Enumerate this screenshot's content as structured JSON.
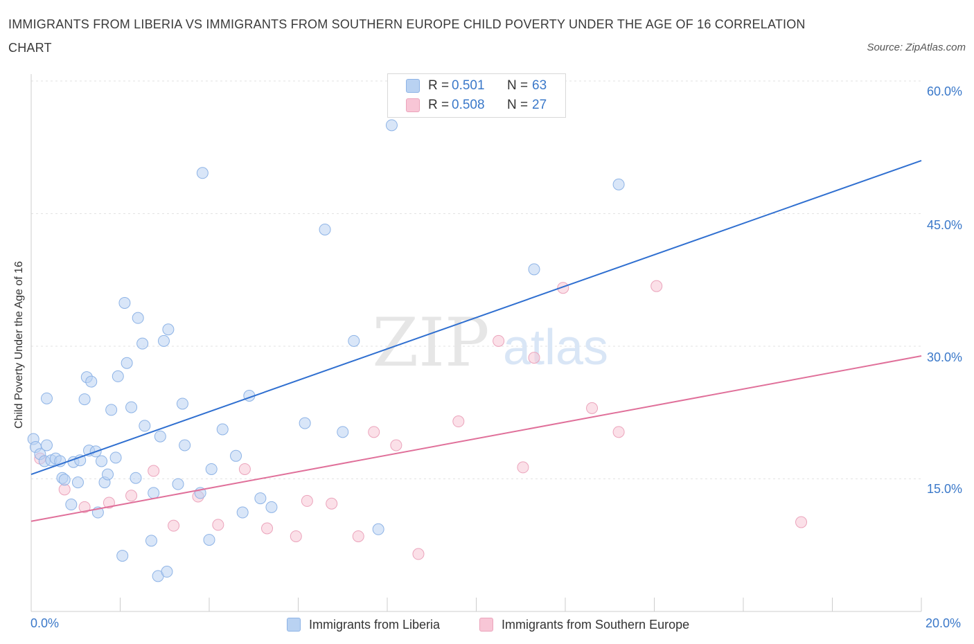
{
  "header": {
    "title": "IMMIGRANTS FROM LIBERIA VS IMMIGRANTS FROM SOUTHERN EUROPE CHILD POVERTY UNDER THE AGE OF 16 CORRELATION CHART",
    "source": "Source: ZipAtlas.com"
  },
  "watermark": {
    "zip": "ZIP",
    "atlas": "atlas"
  },
  "legend": {
    "r_label": "R =",
    "n_label": "N =",
    "series": [
      {
        "r": "0.501",
        "n": "63"
      },
      {
        "r": "0.508",
        "n": "27"
      }
    ]
  },
  "colors": {
    "blue_fill": "#b9d2f2",
    "blue_stroke": "#8db3e6",
    "blue_line": "#2f6fd0",
    "pink_fill": "#f8c6d6",
    "pink_stroke": "#eba3bb",
    "pink_line": "#e0709a",
    "accent_text": "#3a78c9"
  },
  "chart_data": {
    "type": "scatter",
    "title": "IMMIGRANTS FROM LIBERIA VS IMMIGRANTS FROM SOUTHERN EUROPE CHILD POVERTY UNDER THE AGE OF 16 CORRELATION CHART",
    "xlabel": "",
    "ylabel": "Child Poverty Under the Age of 16",
    "xlim": [
      0,
      20
    ],
    "ylim": [
      0,
      60
    ],
    "x_tick_labels": {
      "min": "0.0%",
      "max": "20.0%"
    },
    "y_tick_labels": [
      "15.0%",
      "30.0%",
      "45.0%",
      "60.0%"
    ],
    "y_ticks": [
      15,
      30,
      45,
      60
    ],
    "series": [
      {
        "name": "Immigrants from Liberia",
        "r": 0.501,
        "n": 63,
        "trend": {
          "x": [
            0,
            20
          ],
          "y": [
            15.5,
            51.0
          ]
        },
        "points": [
          [
            0.05,
            19.5
          ],
          [
            0.1,
            18.6
          ],
          [
            0.2,
            17.8
          ],
          [
            0.3,
            17.0
          ],
          [
            0.35,
            18.8
          ],
          [
            0.45,
            17.1
          ],
          [
            0.55,
            17.3
          ],
          [
            0.65,
            17.0
          ],
          [
            0.35,
            24.1
          ],
          [
            0.7,
            15.1
          ],
          [
            0.75,
            14.9
          ],
          [
            0.9,
            12.1
          ],
          [
            0.95,
            16.9
          ],
          [
            1.05,
            14.6
          ],
          [
            1.1,
            17.1
          ],
          [
            1.2,
            24.0
          ],
          [
            1.25,
            26.5
          ],
          [
            1.3,
            18.2
          ],
          [
            1.35,
            26.0
          ],
          [
            1.45,
            18.1
          ],
          [
            1.5,
            11.2
          ],
          [
            1.58,
            17.0
          ],
          [
            1.65,
            14.6
          ],
          [
            1.72,
            15.5
          ],
          [
            1.8,
            22.8
          ],
          [
            1.9,
            17.4
          ],
          [
            1.95,
            26.6
          ],
          [
            2.05,
            6.3
          ],
          [
            2.1,
            34.9
          ],
          [
            2.15,
            28.1
          ],
          [
            2.25,
            23.1
          ],
          [
            2.35,
            15.1
          ],
          [
            2.4,
            33.2
          ],
          [
            2.5,
            30.3
          ],
          [
            2.55,
            21.0
          ],
          [
            2.7,
            8.0
          ],
          [
            2.75,
            13.4
          ],
          [
            2.85,
            4.0
          ],
          [
            2.9,
            19.8
          ],
          [
            2.98,
            30.6
          ],
          [
            3.05,
            4.5
          ],
          [
            3.08,
            31.9
          ],
          [
            3.3,
            14.4
          ],
          [
            3.4,
            23.5
          ],
          [
            3.45,
            18.8
          ],
          [
            3.85,
            49.6
          ],
          [
            3.8,
            13.4
          ],
          [
            4.0,
            8.1
          ],
          [
            4.05,
            16.1
          ],
          [
            4.3,
            20.6
          ],
          [
            4.6,
            17.6
          ],
          [
            4.75,
            11.2
          ],
          [
            4.9,
            24.4
          ],
          [
            5.15,
            12.8
          ],
          [
            5.4,
            11.8
          ],
          [
            6.15,
            21.3
          ],
          [
            6.6,
            43.2
          ],
          [
            7.0,
            20.3
          ],
          [
            7.25,
            30.6
          ],
          [
            7.8,
            9.3
          ],
          [
            8.1,
            55.0
          ],
          [
            11.3,
            38.7
          ],
          [
            13.2,
            48.3
          ]
        ]
      },
      {
        "name": "Immigrants from Southern Europe",
        "r": 0.508,
        "n": 27,
        "trend": {
          "x": [
            0,
            20
          ],
          "y": [
            10.2,
            28.9
          ]
        },
        "points": [
          [
            0.2,
            17.3
          ],
          [
            0.75,
            13.8
          ],
          [
            1.2,
            11.8
          ],
          [
            1.75,
            12.3
          ],
          [
            2.25,
            13.1
          ],
          [
            2.75,
            15.9
          ],
          [
            3.2,
            9.7
          ],
          [
            3.75,
            13.0
          ],
          [
            4.2,
            9.8
          ],
          [
            4.8,
            16.1
          ],
          [
            5.3,
            9.4
          ],
          [
            5.95,
            8.5
          ],
          [
            6.2,
            12.5
          ],
          [
            6.75,
            12.2
          ],
          [
            7.35,
            8.5
          ],
          [
            7.7,
            20.3
          ],
          [
            8.2,
            18.8
          ],
          [
            8.7,
            6.5
          ],
          [
            9.6,
            21.5
          ],
          [
            10.5,
            30.6
          ],
          [
            11.05,
            16.3
          ],
          [
            11.3,
            28.7
          ],
          [
            11.95,
            36.6
          ],
          [
            12.6,
            23.0
          ],
          [
            13.2,
            20.3
          ],
          [
            14.05,
            36.8
          ],
          [
            17.3,
            10.1
          ]
        ]
      }
    ]
  },
  "bottom_legend": {
    "items": [
      "Immigrants from Liberia",
      "Immigrants from Southern Europe"
    ]
  }
}
